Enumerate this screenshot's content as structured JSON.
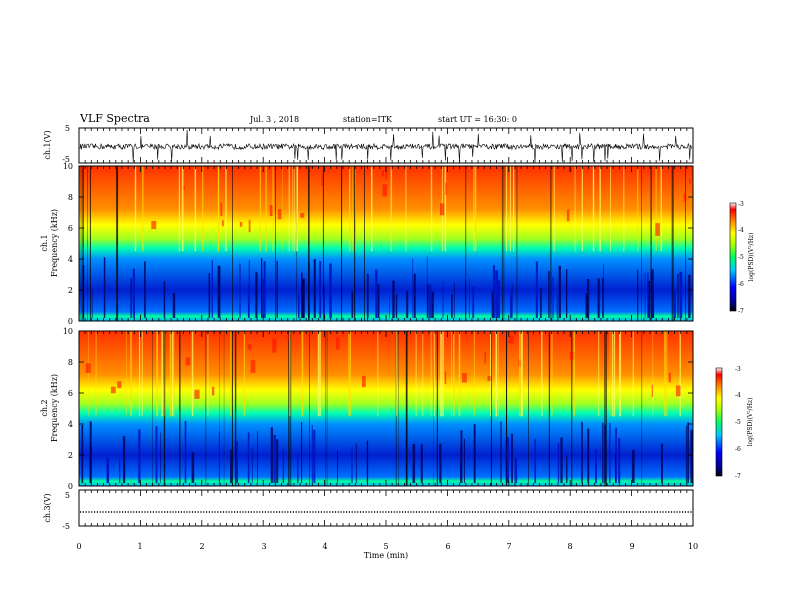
{
  "header": {
    "title": "VLF Spectra",
    "date": "Jul. 3 , 2018",
    "station": "station=ITK",
    "start": "start UT = 16:30: 0"
  },
  "colorbar": {
    "label": "log(PSD)(V²/Hz)",
    "ticks": [
      "-3",
      "-4",
      "-5",
      "-6",
      "-7"
    ]
  },
  "chart_data": [
    {
      "type": "line",
      "name": "ch.1 waveform",
      "ylabel": "ch.1(V)",
      "ylim": [
        -5,
        5
      ],
      "yticks": [
        "5",
        "-5"
      ],
      "xlim": [
        0,
        10
      ],
      "baseline": -0.3
    },
    {
      "type": "heatmap",
      "name": "ch.1 spectrogram",
      "ylabel": "ch.1\nFrequency (kHz)",
      "ylim": [
        0,
        10
      ],
      "yticks": [
        "0",
        "2",
        "4",
        "6",
        "8",
        "10"
      ],
      "xlim": [
        0,
        10
      ],
      "colorscale": [
        "#000080",
        "#0000ff",
        "#00c8ff",
        "#00ff80",
        "#ffff00",
        "#ff8000",
        "#ff0000"
      ],
      "zlim": [
        -7,
        -3
      ]
    },
    {
      "type": "heatmap",
      "name": "ch.2 spectrogram",
      "ylabel": "ch.2\nFrequency (kHz)",
      "ylim": [
        0,
        10
      ],
      "yticks": [
        "0",
        "2",
        "4",
        "6",
        "8",
        "10"
      ],
      "xlim": [
        0,
        10
      ],
      "zlim": [
        -7,
        -3
      ]
    },
    {
      "type": "line",
      "name": "ch.3 waveform",
      "ylabel": "ch.3(V)",
      "ylim": [
        -5,
        5
      ],
      "yticks": [
        "5",
        "-5"
      ],
      "xlim": [
        0,
        10
      ],
      "baseline": 0
    }
  ],
  "xaxis": {
    "label": "Time (min)",
    "ticks": [
      "0",
      "1",
      "2",
      "3",
      "4",
      "5",
      "6",
      "7",
      "8",
      "9",
      "10"
    ]
  },
  "labels": {
    "ch1_v": "ch.1(V)",
    "ch1": "ch.1",
    "freq": "Frequency (kHz)",
    "ch2": "ch.2",
    "ch3_v": "ch.3(V)"
  }
}
